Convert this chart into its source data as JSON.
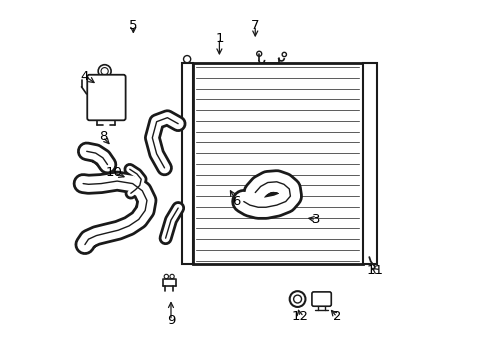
{
  "bg_color": "#ffffff",
  "line_color": "#1a1a1a",
  "fig_width": 4.89,
  "fig_height": 3.6,
  "dpi": 100,
  "label_arrow_map": {
    "1": {
      "lpos": [
        0.43,
        0.895
      ],
      "apos": [
        0.43,
        0.84
      ]
    },
    "2": {
      "lpos": [
        0.758,
        0.118
      ],
      "apos": [
        0.735,
        0.145
      ]
    },
    "3": {
      "lpos": [
        0.7,
        0.39
      ],
      "apos": [
        0.668,
        0.395
      ]
    },
    "4": {
      "lpos": [
        0.055,
        0.79
      ],
      "apos": [
        0.09,
        0.765
      ]
    },
    "5": {
      "lpos": [
        0.19,
        0.93
      ],
      "apos": [
        0.19,
        0.9
      ]
    },
    "6": {
      "lpos": [
        0.478,
        0.44
      ],
      "apos": [
        0.455,
        0.48
      ]
    },
    "7": {
      "lpos": [
        0.53,
        0.93
      ],
      "apos": [
        0.53,
        0.89
      ]
    },
    "8": {
      "lpos": [
        0.105,
        0.62
      ],
      "apos": [
        0.13,
        0.593
      ]
    },
    "9": {
      "lpos": [
        0.295,
        0.108
      ],
      "apos": [
        0.295,
        0.17
      ]
    },
    "10": {
      "lpos": [
        0.135,
        0.52
      ],
      "apos": [
        0.175,
        0.505
      ]
    },
    "11": {
      "lpos": [
        0.865,
        0.248
      ],
      "apos": [
        0.848,
        0.26
      ]
    },
    "12": {
      "lpos": [
        0.655,
        0.118
      ],
      "apos": [
        0.648,
        0.148
      ]
    }
  }
}
